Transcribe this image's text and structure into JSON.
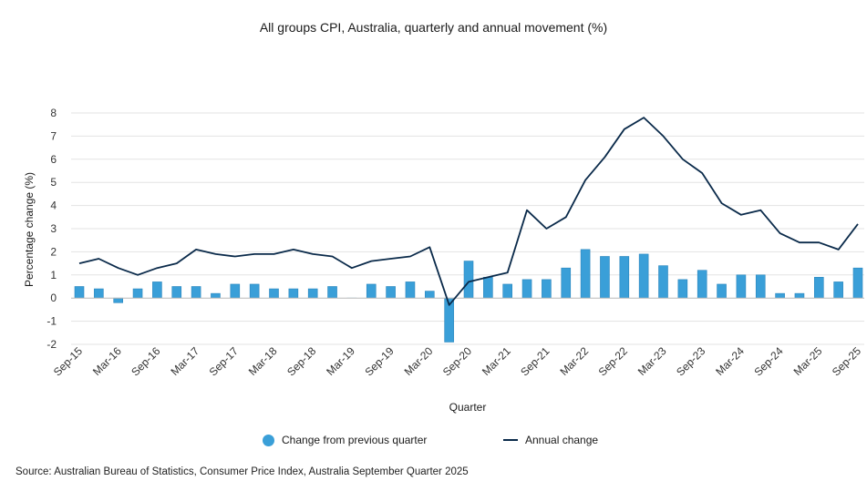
{
  "chart_data": {
    "type": "bar",
    "title": "All groups CPI, Australia, quarterly and annual movement (%)",
    "xlabel": "Quarter",
    "ylabel": "Percentage change (%)",
    "ylim": [
      -2,
      8
    ],
    "yticks": [
      -2,
      -1,
      0,
      1,
      2,
      3,
      4,
      5,
      6,
      7,
      8
    ],
    "grid": true,
    "legend_position": "bottom",
    "categories": [
      "Sep-15",
      "Dec-15",
      "Mar-16",
      "Jun-16",
      "Sep-16",
      "Dec-16",
      "Mar-17",
      "Jun-17",
      "Sep-17",
      "Dec-17",
      "Mar-18",
      "Jun-18",
      "Sep-18",
      "Dec-18",
      "Mar-19",
      "Jun-19",
      "Sep-19",
      "Dec-19",
      "Mar-20",
      "Jun-20",
      "Sep-20",
      "Dec-20",
      "Mar-21",
      "Jun-21",
      "Sep-21",
      "Dec-21",
      "Mar-22",
      "Jun-22",
      "Sep-22",
      "Dec-22",
      "Mar-23",
      "Jun-23",
      "Sep-23",
      "Dec-23",
      "Mar-24",
      "Jun-24",
      "Sep-24",
      "Dec-24",
      "Mar-25",
      "Jun-25",
      "Sep-25"
    ],
    "tick_labels": [
      "Sep-15",
      "Mar-16",
      "Sep-16",
      "Mar-17",
      "Sep-17",
      "Mar-18",
      "Sep-18",
      "Mar-19",
      "Sep-19",
      "Mar-20",
      "Sep-20",
      "Mar-21",
      "Sep-21",
      "Mar-22",
      "Sep-22",
      "Mar-23",
      "Sep-23",
      "Mar-24",
      "Sep-24",
      "Mar-25",
      "Sep-25"
    ],
    "series": [
      {
        "name": "Change from previous quarter",
        "kind": "bar",
        "color": "#3a9fd8",
        "values": [
          0.5,
          0.4,
          -0.2,
          0.4,
          0.7,
          0.5,
          0.5,
          0.2,
          0.6,
          0.6,
          0.4,
          0.4,
          0.4,
          0.5,
          0.0,
          0.6,
          0.5,
          0.7,
          0.3,
          -1.9,
          1.6,
          0.9,
          0.6,
          0.8,
          0.8,
          1.3,
          2.1,
          1.8,
          1.8,
          1.9,
          1.4,
          0.8,
          1.2,
          0.6,
          1.0,
          1.0,
          0.2,
          0.2,
          0.9,
          0.7,
          1.3
        ]
      },
      {
        "name": "Annual change",
        "kind": "line",
        "color": "#0a2a4a",
        "values": [
          1.5,
          1.7,
          1.3,
          1.0,
          1.3,
          1.5,
          2.1,
          1.9,
          1.8,
          1.9,
          1.9,
          2.1,
          1.9,
          1.8,
          1.3,
          1.6,
          1.7,
          1.8,
          2.2,
          -0.3,
          0.7,
          0.9,
          1.1,
          3.8,
          3.0,
          3.5,
          5.1,
          6.1,
          7.3,
          7.8,
          7.0,
          6.0,
          5.4,
          4.1,
          3.6,
          3.8,
          2.8,
          2.4,
          2.4,
          2.1,
          3.2
        ]
      }
    ]
  },
  "source": "Source: Australian Bureau of Statistics, Consumer Price Index, Australia September Quarter 2025"
}
